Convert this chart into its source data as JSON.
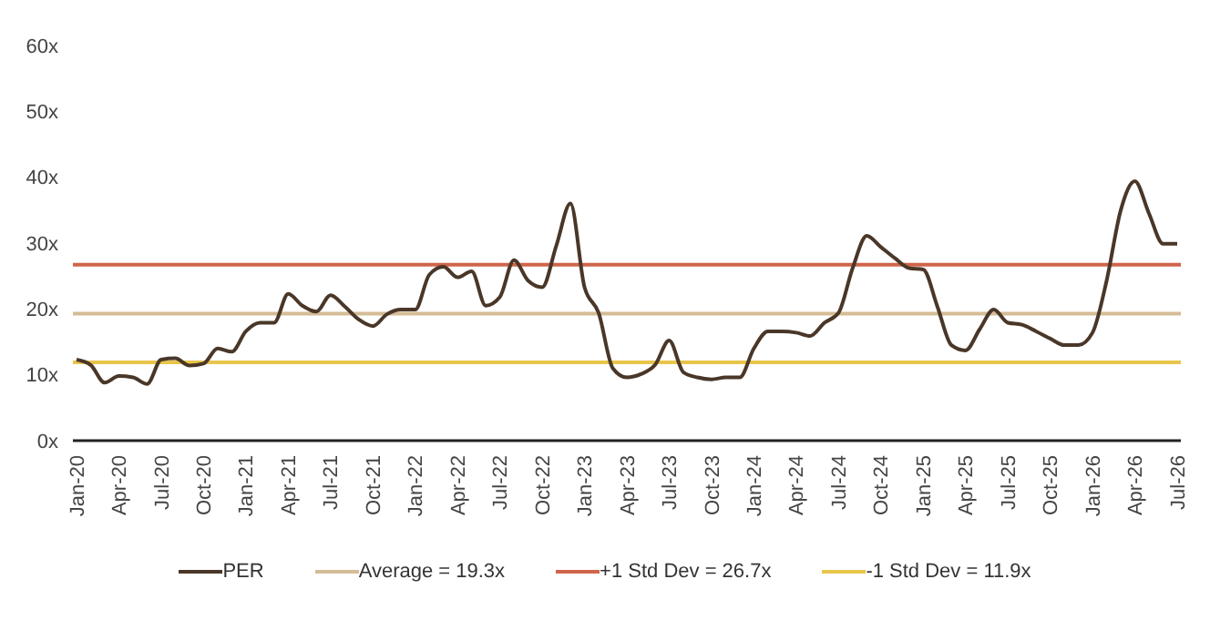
{
  "chart_data": {
    "type": "line",
    "categories": [
      "Jan-20",
      null,
      null,
      "Apr-20",
      null,
      null,
      "Jul-20",
      null,
      null,
      "Oct-20",
      null,
      null,
      "Jan-21",
      null,
      null,
      "Apr-21",
      null,
      null,
      "Jul-21",
      null,
      null,
      "Oct-21",
      null,
      null,
      "Jan-22",
      null,
      null,
      "Apr-22",
      null,
      null,
      "Jul-22",
      null,
      null,
      "Oct-22",
      null,
      null,
      "Jan-23",
      null,
      null,
      "Apr-23",
      null,
      null,
      "Jul-23",
      null,
      null,
      "Oct-23",
      null,
      null,
      "Jan-24",
      null,
      null,
      "Apr-24",
      null,
      null,
      "Jul-24",
      null,
      null,
      "Oct-24",
      null,
      null,
      "Jan-25",
      null,
      null,
      "Apr-25",
      null,
      null,
      "Jul-25",
      null,
      null,
      "Oct-25",
      null,
      null,
      "Jan-26",
      null,
      null,
      "Apr-26",
      null,
      null,
      "Jul-26"
    ],
    "series": [
      {
        "name": "PER",
        "color": "#4a3728",
        "values": [
          12.3,
          11.5,
          8.8,
          9.8,
          9.6,
          8.6,
          12.3,
          12.5,
          11.4,
          11.7,
          14,
          13.5,
          16.6,
          17.9,
          17.9,
          22.3,
          20.5,
          19.6,
          22.1,
          20.4,
          18.4,
          17.4,
          19.2,
          19.9,
          19.9,
          25.2,
          26.4,
          24.8,
          25.7,
          20.5,
          21.8,
          27.4,
          24.3,
          23.3,
          29.6,
          36,
          23.3,
          19.4,
          11,
          9.6,
          10.1,
          11.5,
          15.2,
          10.4,
          9.6,
          9.3,
          9.6,
          9.6,
          14,
          16.6,
          16.6,
          16.4,
          15.9,
          17.9,
          19.4,
          26.2,
          31.1,
          29.4,
          27.7,
          26.2,
          26,
          20.4,
          14.5,
          13.7,
          16.9,
          19.9,
          17.9,
          17.6,
          16.6,
          15.5,
          14.5,
          14.5,
          16.4,
          24.3,
          35,
          39.4,
          34.5,
          29.9,
          29.9
        ]
      }
    ],
    "ref_lines": [
      {
        "axis": "y",
        "value": 19.3,
        "label": "Average = 19.3x",
        "color": "#d4bc96"
      },
      {
        "axis": "y",
        "value": 26.7,
        "label": "+1 Std Dev = 26.7x",
        "color": "#d0654a"
      },
      {
        "axis": "y",
        "value": 11.9,
        "label": "-1 Std Dev = 11.9x",
        "color": "#e8c54a"
      }
    ],
    "ylim": [
      0,
      60
    ],
    "yticks": [
      {
        "value": 0,
        "label": "0x"
      },
      {
        "value": 10,
        "label": "10x"
      },
      {
        "value": 20,
        "label": "20x"
      },
      {
        "value": 30,
        "label": "30x"
      },
      {
        "value": 40,
        "label": "40x"
      },
      {
        "value": 50,
        "label": "50x"
      },
      {
        "value": 60,
        "label": "60x"
      }
    ],
    "grid": false,
    "legend": "bottom",
    "marker": "none",
    "line_style": "solid"
  }
}
